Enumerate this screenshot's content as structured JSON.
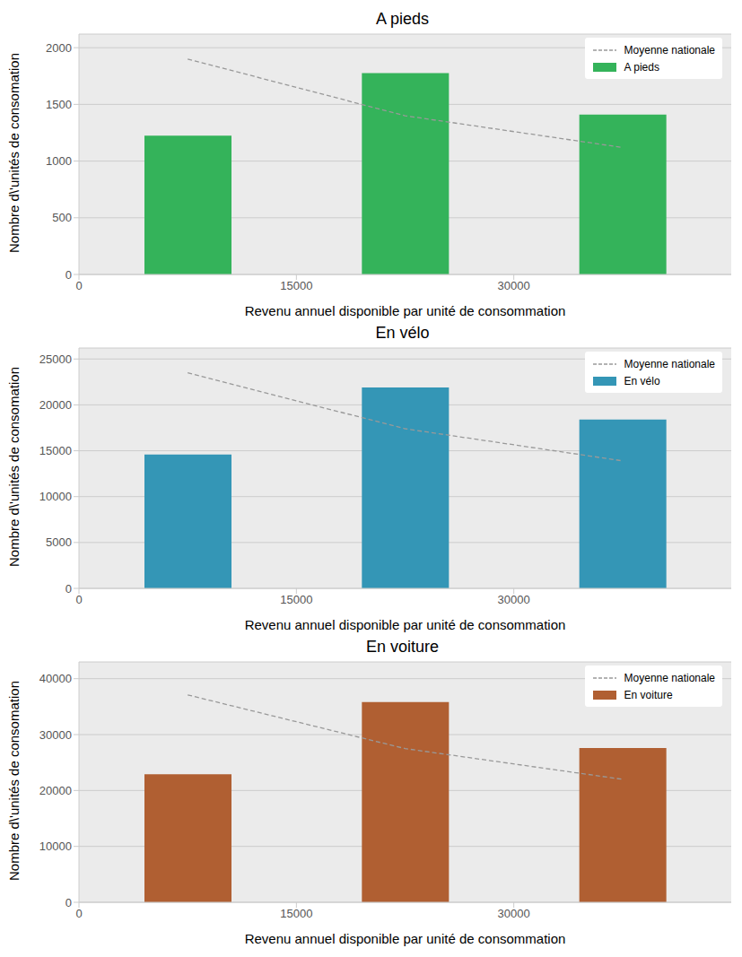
{
  "chart_data": [
    {
      "type": "bar",
      "title": "A pieds",
      "x_label": "Revenu annuel disponible par unité de consommation",
      "y_label": "Nombre d\\'unités de consomation",
      "x": [
        7500,
        22500,
        37500
      ],
      "xlim": [
        0,
        45000
      ],
      "xticks": [
        0,
        15000,
        30000
      ],
      "ylim": [
        0,
        2120
      ],
      "yticks": [
        0,
        500,
        1000,
        1500,
        2000
      ],
      "grid": true,
      "legend": "upper right",
      "series": [
        {
          "name": "Moyenne nationale",
          "type": "line",
          "line_style": "dashed",
          "color": "#999999",
          "values": [
            1900,
            1400,
            1120
          ]
        },
        {
          "name": "A pieds",
          "type": "bar",
          "color": "#34b35a",
          "values": [
            1225,
            1775,
            1410
          ]
        }
      ]
    },
    {
      "type": "bar",
      "title": "En vélo",
      "x_label": "Revenu annuel disponible par unité de consommation",
      "y_label": "Nombre d\\'unités de consomation",
      "x": [
        7500,
        22500,
        37500
      ],
      "xlim": [
        0,
        45000
      ],
      "xticks": [
        0,
        15000,
        30000
      ],
      "ylim": [
        0,
        26200
      ],
      "yticks": [
        0,
        5000,
        10000,
        15000,
        20000,
        25000
      ],
      "grid": true,
      "legend": "upper right",
      "series": [
        {
          "name": "Moyenne nationale",
          "type": "line",
          "line_style": "dashed",
          "color": "#999999",
          "values": [
            23500,
            17400,
            13900
          ]
        },
        {
          "name": "En vélo",
          "type": "bar",
          "color": "#3496b6",
          "values": [
            14600,
            21900,
            18400
          ]
        }
      ]
    },
    {
      "type": "bar",
      "title": "En voiture",
      "x_label": "Revenu annuel disponible par unité de consommation",
      "y_label": "Nombre d\\'unités de consomation",
      "x": [
        7500,
        22500,
        37500
      ],
      "xlim": [
        0,
        45000
      ],
      "xticks": [
        0,
        15000,
        30000
      ],
      "ylim": [
        0,
        43000
      ],
      "yticks": [
        0,
        10000,
        20000,
        30000,
        40000
      ],
      "grid": true,
      "legend": "upper right",
      "series": [
        {
          "name": "Moyenne nationale",
          "type": "line",
          "line_style": "dashed",
          "color": "#999999",
          "values": [
            37100,
            27500,
            22000
          ]
        },
        {
          "name": "En voiture",
          "type": "bar",
          "color": "#b05f32",
          "values": [
            22900,
            35800,
            27600
          ]
        }
      ]
    }
  ]
}
